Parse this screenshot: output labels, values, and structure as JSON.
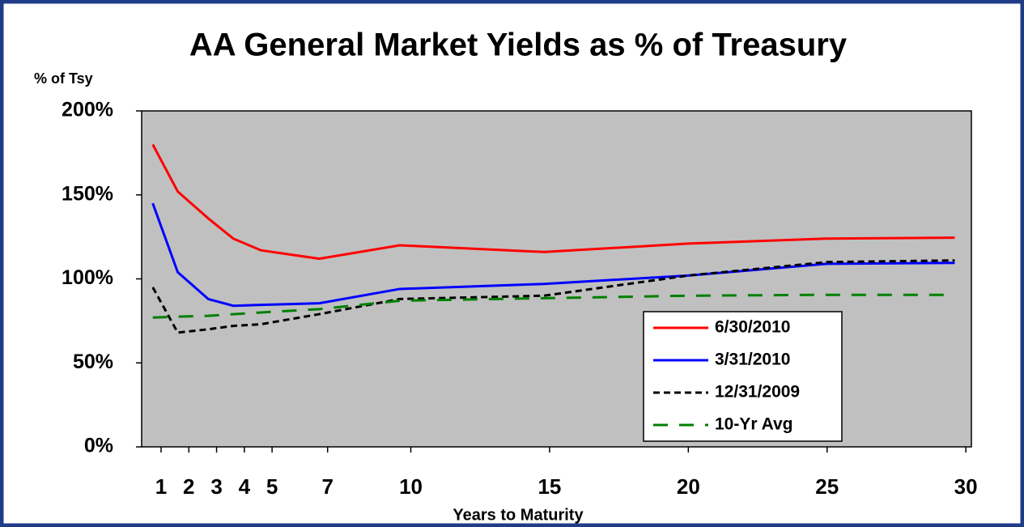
{
  "chart_data": {
    "type": "line",
    "title": "AA General Market Yields as % of Treasury",
    "y_label": "% of Tsy",
    "x_label": "Years to Maturity",
    "x": [
      0.7,
      1.6,
      2.7,
      3.6,
      4.6,
      6.7,
      9.6,
      14.8,
      20,
      25,
      29.6
    ],
    "series": [
      {
        "name": "6/30/2010",
        "color": "#ff0000",
        "line_style": "solid",
        "values": [
          180,
          152,
          136,
          124,
          117,
          112,
          120,
          116,
          121,
          124,
          124.5
        ]
      },
      {
        "name": "3/31/2010",
        "color": "#0000ff",
        "line_style": "solid",
        "values": [
          145,
          104,
          88,
          84,
          84.5,
          85.5,
          94,
          97,
          102,
          109,
          109.5
        ]
      },
      {
        "name": "12/31/2009",
        "color": "#000000",
        "line_style": "dotted",
        "values": [
          95,
          68,
          70,
          72,
          73,
          79,
          88,
          90,
          102,
          110,
          111
        ]
      },
      {
        "name": "10-Yr Avg",
        "color": "#008000",
        "line_style": "dashed",
        "values": [
          77,
          77.5,
          78,
          79,
          80,
          82,
          87,
          88.5,
          90,
          90.5,
          90.5
        ]
      }
    ],
    "xlim": [
      0.3,
      30.2
    ],
    "xticks": [
      1,
      2,
      3,
      4,
      5,
      7,
      10,
      15,
      20,
      25,
      30
    ],
    "ylim": [
      0,
      200
    ],
    "yticks": [
      {
        "value": 0,
        "label": "0%"
      },
      {
        "value": 50,
        "label": "50%"
      },
      {
        "value": 100,
        "label": "100%"
      },
      {
        "value": 150,
        "label": "150%"
      },
      {
        "value": 200,
        "label": "200%"
      }
    ],
    "legend": "lower right",
    "plot_background": "#c0c0c0"
  }
}
